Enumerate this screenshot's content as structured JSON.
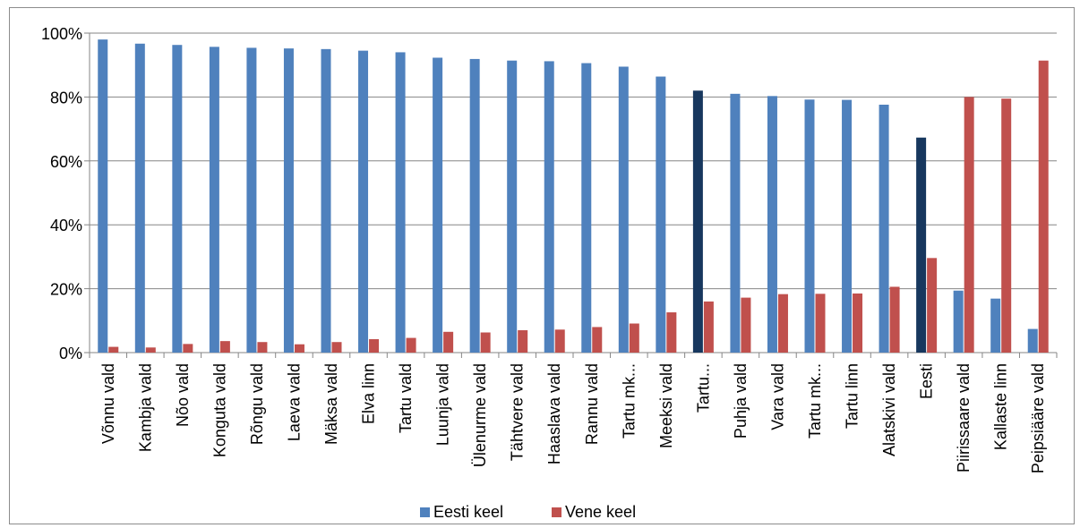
{
  "chart_data": {
    "type": "bar",
    "categories": [
      "Võnnu vald",
      "Kambja vald",
      "Nõo vald",
      "Konguta vald",
      "Rõngu vald",
      "Laeva vald",
      "Mäksa vald",
      "Elva linn",
      "Tartu vald",
      "Luunja vald",
      "Ülenurme vald",
      "Tähtvere vald",
      "Haaslava vald",
      "Rannu vald",
      "Tartu mk...",
      "Meeksi vald",
      "Tartu...",
      "Puhja vald",
      "Vara vald",
      "Tartu mk...",
      "Tartu linn",
      "Alatskivi vald",
      "Eesti",
      "Piirissaare vald",
      "Kallaste linn",
      "Peipsiääre vald"
    ],
    "series": [
      {
        "name": "Eesti keel",
        "color": "#4f81bd",
        "highlight_color": "#17375e",
        "highlight_indices": [
          16,
          22
        ],
        "values": [
          98,
          96.7,
          96.3,
          95.7,
          95.4,
          95.2,
          95.0,
          94.5,
          94.0,
          92.3,
          91.9,
          91.4,
          91.2,
          90.6,
          89.5,
          86.4,
          82.0,
          81.0,
          80.3,
          79.2,
          79.1,
          77.6,
          67.3,
          19.4,
          16.9,
          7.4
        ]
      },
      {
        "name": "Vene keel",
        "color": "#c0504d",
        "values": [
          1.8,
          1.6,
          2.7,
          3.6,
          3.3,
          2.6,
          3.3,
          4.2,
          4.6,
          6.5,
          6.3,
          7.0,
          7.2,
          8.0,
          9.1,
          12.6,
          16.0,
          17.2,
          18.3,
          18.4,
          18.5,
          20.6,
          29.6,
          80.0,
          79.5,
          91.4
        ]
      }
    ],
    "yticks": [
      "0%",
      "20%",
      "40%",
      "60%",
      "80%",
      "100%"
    ],
    "ylim": [
      0,
      100
    ],
    "grid": true,
    "legend": "bottom"
  }
}
